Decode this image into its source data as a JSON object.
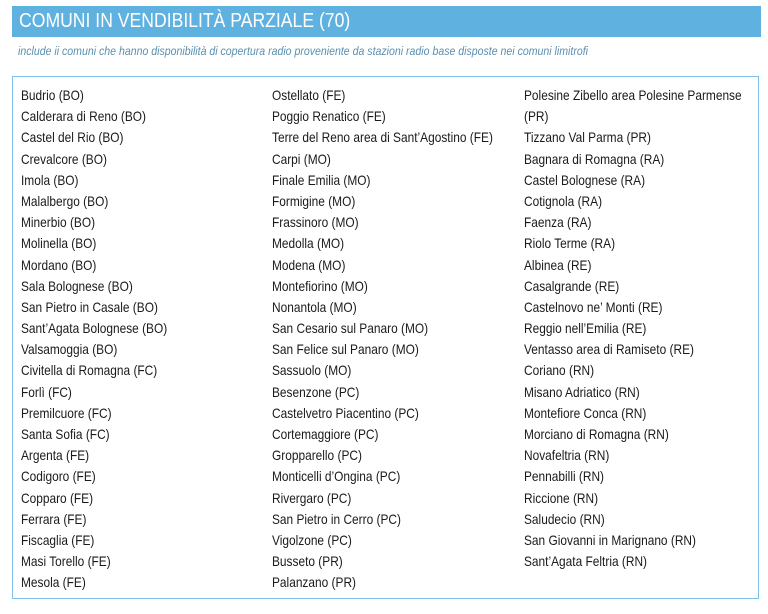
{
  "header": {
    "title": "COMUNI IN VENDIBILITÀ PARZIALE (70)",
    "subtitle": "include ii comuni che hanno disponibilità di copertura radio proveniente da stazioni radio base disposte nei comuni limitrofi"
  },
  "columns": [
    [
      "Budrio (BO)",
      "Calderara di Reno (BO)",
      "Castel del Rio (BO)",
      "Crevalcore (BO)",
      "Imola (BO)",
      "Malalbergo (BO)",
      "Minerbio (BO)",
      "Molinella (BO)",
      "Mordano (BO)",
      "Sala Bolognese (BO)",
      "San Pietro in Casale (BO)",
      "Sant’Agata Bolognese (BO)",
      "Valsamoggia (BO)",
      "Civitella di Romagna (FC)",
      "Forlì (FC)",
      "Premilcuore (FC)",
      "Santa Sofia (FC)",
      "Argenta (FE)",
      "Codigoro (FE)",
      "Copparo (FE)",
      "Ferrara (FE)",
      "Fiscaglia (FE)",
      "Masi Torello (FE)",
      "Mesola (FE)"
    ],
    [
      "Ostellato (FE)",
      "Poggio Renatico (FE)",
      "Terre del Reno area di Sant’Agostino (FE)",
      "Carpi (MO)",
      "Finale Emilia (MO)",
      "Formigine (MO)",
      "Frassinoro (MO)",
      "Medolla (MO)",
      "Modena (MO)",
      "Montefiorino (MO)",
      "Nonantola (MO)",
      "San Cesario sul Panaro (MO)",
      "San Felice sul Panaro (MO)",
      "Sassuolo (MO)",
      "Besenzone (PC)",
      "Castelvetro Piacentino (PC)",
      "Cortemaggiore (PC)",
      "Gropparello (PC)",
      "Monticelli d’Ongina (PC)",
      "Rivergaro (PC)",
      "San Pietro in Cerro (PC)",
      "Vigolzone (PC)",
      "Busseto (PR)",
      "Palanzano (PR)"
    ],
    [
      "Polesine Zibello area Polesine Parmense",
      "(PR)",
      "Tizzano Val Parma (PR)",
      "Bagnara di Romagna (RA)",
      "Castel Bolognese (RA)",
      "Cotignola (RA)",
      "Faenza (RA)",
      "Riolo Terme (RA)",
      "Albinea (RE)",
      "Casalgrande (RE)",
      "Castelnovo ne’ Monti (RE)",
      "Reggio nell’Emilia (RE)",
      "Ventasso area di Ramiseto (RE)",
      "Coriano (RN)",
      "Misano Adriatico (RN)",
      "Montefiore Conca (RN)",
      "Morciano di Romagna (RN)",
      "Novafeltria (RN)",
      "Pennabilli (RN)",
      "Riccione (RN)",
      "Saludecio (RN)",
      "San Giovanni in Marignano (RN)",
      "Sant’Agata Feltria (RN)"
    ]
  ]
}
